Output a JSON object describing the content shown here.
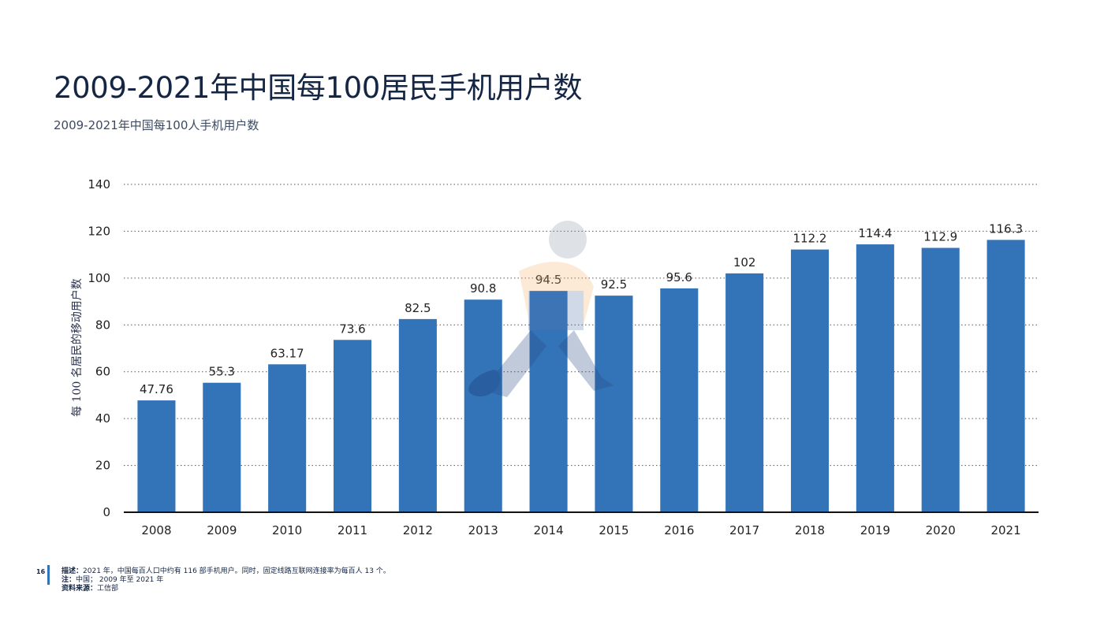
{
  "header": {
    "title": "2009-2021年中国每100居民手机用户数",
    "subtitle": "2009-2021年中国每100人手机用户数"
  },
  "footer": {
    "page_number": "16",
    "description_label": "描述：",
    "description_text": "2021 年，中国每百人口中约有 116 部手机用户。同时，固定线路互联网连接率为每百人 13 个。",
    "note_label": "注：",
    "note_text": "中国； 2009 年至 2021 年",
    "source_label": "资料来源：",
    "source_text": "工信部"
  },
  "colors": {
    "bar": "#3373b8",
    "title": "#152544"
  },
  "chart_data": {
    "type": "bar",
    "title": "",
    "xlabel": "",
    "ylabel": "每 100 名居民的移动用户数",
    "categories": [
      "2008",
      "2009",
      "2010",
      "2011",
      "2012",
      "2013",
      "2014",
      "2015",
      "2016",
      "2017",
      "2018",
      "2019",
      "2020",
      "2021"
    ],
    "values": [
      47.76,
      55.3,
      63.17,
      73.6,
      82.5,
      90.8,
      94.5,
      92.5,
      95.6,
      102,
      112.2,
      114.4,
      112.9,
      116.3
    ],
    "value_labels": [
      "47.76",
      "55.3",
      "63.17",
      "73.6",
      "82.5",
      "90.8",
      "94.5",
      "92.5",
      "95.6",
      "102",
      "112.2",
      "114.4",
      "112.9",
      "116.3"
    ],
    "ylim": [
      0,
      140
    ],
    "yticks": [
      0,
      20,
      40,
      60,
      80,
      100,
      120,
      140
    ],
    "grid": true
  }
}
